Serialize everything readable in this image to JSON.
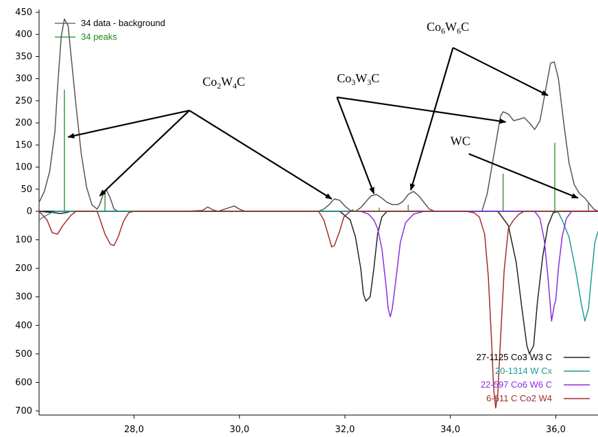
{
  "chart_data": {
    "type": "line",
    "title": "",
    "xlabel": "",
    "ylabel": "",
    "xlim": [
      26.2,
      36.8
    ],
    "ylim_upper": [
      0,
      450
    ],
    "ylim_lower": [
      0,
      700
    ],
    "x_ticks": [
      {
        "value": 28,
        "label": "28,0"
      },
      {
        "value": 30,
        "label": "30,0"
      },
      {
        "value": 32,
        "label": "32,0"
      },
      {
        "value": 34,
        "label": "34,0"
      },
      {
        "value": 36,
        "label": "36,0"
      }
    ],
    "y_ticks_upper": [
      {
        "value": 450,
        "label": "450"
      },
      {
        "value": 400,
        "label": "400"
      },
      {
        "value": 350,
        "label": "350"
      },
      {
        "value": 300,
        "label": "300"
      },
      {
        "value": 250,
        "label": "250"
      },
      {
        "value": 200,
        "label": "200"
      },
      {
        "value": 150,
        "label": "150"
      },
      {
        "value": 100,
        "label": "100"
      },
      {
        "value": 50,
        "label": "50"
      },
      {
        "value": 0,
        "label": "0"
      }
    ],
    "y_ticks_lower": [
      {
        "value": 100,
        "label": "100"
      },
      {
        "value": 200,
        "label": "200"
      },
      {
        "value": 300,
        "label": "300"
      },
      {
        "value": 400,
        "label": "400"
      },
      {
        "value": 500,
        "label": "500"
      },
      {
        "value": 600,
        "label": "600"
      },
      {
        "value": 700,
        "label": "700"
      }
    ],
    "colors": {
      "data": "#555555",
      "peaks": "#1a8a1a",
      "co3w3c": "#222222",
      "wc": "#1a9e8e",
      "co6w6c": "#8a2be2",
      "co2w4c": "#a52a2a",
      "arrow": "#000000"
    },
    "series": [
      {
        "key": "data",
        "name": "34 data - background",
        "points": [
          [
            26.2,
            20
          ],
          [
            26.3,
            45
          ],
          [
            26.4,
            90
          ],
          [
            26.5,
            180
          ],
          [
            26.55,
            280
          ],
          [
            26.62,
            395
          ],
          [
            26.68,
            435
          ],
          [
            26.75,
            420
          ],
          [
            26.8,
            360
          ],
          [
            26.9,
            240
          ],
          [
            27.0,
            130
          ],
          [
            27.1,
            55
          ],
          [
            27.2,
            15
          ],
          [
            27.3,
            5
          ],
          [
            27.35,
            15
          ],
          [
            27.42,
            40
          ],
          [
            27.48,
            48
          ],
          [
            27.55,
            30
          ],
          [
            27.62,
            5
          ],
          [
            27.7,
            0
          ],
          [
            28.5,
            0
          ],
          [
            29.0,
            0
          ],
          [
            29.3,
            2
          ],
          [
            29.4,
            10
          ],
          [
            29.5,
            3
          ],
          [
            29.6,
            0
          ],
          [
            29.8,
            8
          ],
          [
            29.9,
            12
          ],
          [
            30.0,
            5
          ],
          [
            30.1,
            0
          ],
          [
            31.5,
            0
          ],
          [
            31.6,
            5
          ],
          [
            31.7,
            15
          ],
          [
            31.8,
            28
          ],
          [
            31.9,
            25
          ],
          [
            32.0,
            12
          ],
          [
            32.1,
            2
          ],
          [
            32.2,
            0
          ],
          [
            32.3,
            8
          ],
          [
            32.4,
            22
          ],
          [
            32.5,
            35
          ],
          [
            32.6,
            38
          ],
          [
            32.7,
            30
          ],
          [
            32.8,
            20
          ],
          [
            32.9,
            15
          ],
          [
            33.0,
            15
          ],
          [
            33.1,
            22
          ],
          [
            33.2,
            38
          ],
          [
            33.3,
            45
          ],
          [
            33.4,
            35
          ],
          [
            33.5,
            20
          ],
          [
            33.6,
            5
          ],
          [
            33.7,
            0
          ],
          [
            34.6,
            0
          ],
          [
            34.7,
            40
          ],
          [
            34.8,
            110
          ],
          [
            34.9,
            180
          ],
          [
            34.95,
            215
          ],
          [
            35.0,
            225
          ],
          [
            35.1,
            220
          ],
          [
            35.2,
            205
          ],
          [
            35.3,
            208
          ],
          [
            35.4,
            212
          ],
          [
            35.5,
            200
          ],
          [
            35.6,
            185
          ],
          [
            35.7,
            205
          ],
          [
            35.8,
            270
          ],
          [
            35.9,
            335
          ],
          [
            35.97,
            338
          ],
          [
            36.05,
            300
          ],
          [
            36.15,
            200
          ],
          [
            36.25,
            110
          ],
          [
            36.35,
            60
          ],
          [
            36.45,
            40
          ],
          [
            36.55,
            30
          ],
          [
            36.65,
            15
          ],
          [
            36.72,
            5
          ],
          [
            36.8,
            0
          ]
        ]
      },
      {
        "key": "co3w3c",
        "name": "27-1125 Co3 W3 C",
        "points": [
          [
            26.2,
            0
          ],
          [
            26.5,
            -5
          ],
          [
            26.6,
            -8
          ],
          [
            26.7,
            -5
          ],
          [
            26.8,
            0
          ],
          [
            31.9,
            0
          ],
          [
            32.1,
            -30
          ],
          [
            32.2,
            -90
          ],
          [
            32.3,
            -200
          ],
          [
            32.35,
            -290
          ],
          [
            32.4,
            -315
          ],
          [
            32.48,
            -300
          ],
          [
            32.55,
            -200
          ],
          [
            32.62,
            -80
          ],
          [
            32.7,
            -20
          ],
          [
            32.8,
            0
          ],
          [
            34.9,
            0
          ],
          [
            35.1,
            -50
          ],
          [
            35.25,
            -180
          ],
          [
            35.35,
            -330
          ],
          [
            35.45,
            -470
          ],
          [
            35.5,
            -500
          ],
          [
            35.58,
            -470
          ],
          [
            35.65,
            -320
          ],
          [
            35.75,
            -160
          ],
          [
            35.85,
            -50
          ],
          [
            35.95,
            -5
          ],
          [
            36.05,
            0
          ],
          [
            36.8,
            0
          ]
        ]
      },
      {
        "key": "wc",
        "name": "20-1314 W Cx",
        "points": [
          [
            26.2,
            -30
          ],
          [
            26.3,
            -18
          ],
          [
            26.4,
            -8
          ],
          [
            26.5,
            0
          ],
          [
            36.0,
            0
          ],
          [
            36.05,
            -5
          ],
          [
            36.12,
            -30
          ],
          [
            36.25,
            -90
          ],
          [
            36.38,
            -210
          ],
          [
            36.48,
            -320
          ],
          [
            36.55,
            -385
          ],
          [
            36.62,
            -340
          ],
          [
            36.68,
            -220
          ],
          [
            36.74,
            -110
          ],
          [
            36.8,
            -70
          ]
        ]
      },
      {
        "key": "co6w6c",
        "name": "22-597 Co6 W6 C",
        "points": [
          [
            32.3,
            0
          ],
          [
            32.45,
            -10
          ],
          [
            32.55,
            -30
          ],
          [
            32.62,
            -60
          ],
          [
            32.7,
            -130
          ],
          [
            32.78,
            -260
          ],
          [
            32.82,
            -340
          ],
          [
            32.86,
            -370
          ],
          [
            32.9,
            -340
          ],
          [
            32.96,
            -250
          ],
          [
            33.05,
            -110
          ],
          [
            33.15,
            -40
          ],
          [
            33.3,
            -10
          ],
          [
            33.5,
            0
          ],
          [
            35.6,
            0
          ],
          [
            35.7,
            -25
          ],
          [
            35.78,
            -100
          ],
          [
            35.85,
            -230
          ],
          [
            35.92,
            -385
          ],
          [
            35.97,
            -330
          ],
          [
            36.0,
            -310
          ],
          [
            36.05,
            -200
          ],
          [
            36.12,
            -90
          ],
          [
            36.2,
            -25
          ],
          [
            36.3,
            0
          ],
          [
            36.8,
            0
          ]
        ]
      },
      {
        "key": "co2w4c",
        "name": "6-611 C Co2 W4",
        "points": [
          [
            26.2,
            0
          ],
          [
            26.35,
            -30
          ],
          [
            26.45,
            -75
          ],
          [
            26.55,
            -80
          ],
          [
            26.65,
            -50
          ],
          [
            26.8,
            -15
          ],
          [
            26.9,
            0
          ],
          [
            27.3,
            0
          ],
          [
            27.35,
            -25
          ],
          [
            27.45,
            -80
          ],
          [
            27.55,
            -115
          ],
          [
            27.62,
            -120
          ],
          [
            27.7,
            -90
          ],
          [
            27.8,
            -35
          ],
          [
            27.9,
            -5
          ],
          [
            28.0,
            0
          ],
          [
            31.5,
            0
          ],
          [
            31.6,
            -30
          ],
          [
            31.68,
            -80
          ],
          [
            31.75,
            -125
          ],
          [
            31.8,
            -120
          ],
          [
            31.9,
            -70
          ],
          [
            31.98,
            -20
          ],
          [
            32.1,
            0
          ],
          [
            34.3,
            0
          ],
          [
            34.45,
            -5
          ],
          [
            34.55,
            -20
          ],
          [
            34.65,
            -80
          ],
          [
            34.72,
            -230
          ],
          [
            34.78,
            -450
          ],
          [
            34.82,
            -620
          ],
          [
            34.86,
            -690
          ],
          [
            34.9,
            -640
          ],
          [
            34.95,
            -450
          ],
          [
            35.02,
            -210
          ],
          [
            35.1,
            -60
          ],
          [
            35.2,
            -30
          ],
          [
            35.3,
            -10
          ],
          [
            35.4,
            0
          ],
          [
            36.8,
            0
          ]
        ]
      }
    ],
    "peak_bars": {
      "name": "34 peaks",
      "x": [
        26.68,
        27.45,
        32.15,
        32.65,
        33.2,
        35.0,
        35.98,
        36.62
      ],
      "y": [
        275,
        40,
        5,
        8,
        15,
        85,
        155,
        20
      ]
    },
    "legend_top": [
      {
        "label": "34 data - background",
        "color_key": "data"
      },
      {
        "label": "34 peaks",
        "color_key": "peaks"
      }
    ],
    "legend_bottom": [
      {
        "label": "27-1125 Co3 W3 C",
        "color_key": "co3w3c"
      },
      {
        "label": "20-1314 W Cx",
        "color_key": "wc"
      },
      {
        "label": "22-597 Co6 W6 C",
        "color_key": "co6w6c"
      },
      {
        "label": "6-611 C Co2 W4",
        "color_key": "co2w4c"
      }
    ],
    "annotations": [
      {
        "label": "Co2W4C",
        "base": "Co",
        "parts": [
          [
            "Co",
            ""
          ],
          [
            "2",
            "sub"
          ],
          [
            "W",
            ""
          ],
          [
            "4",
            "sub"
          ],
          [
            "C",
            ""
          ]
        ],
        "at": [
          29.3,
          284
        ],
        "from": [
          29.05,
          228
        ],
        "to": [
          [
            26.75,
            168
          ],
          [
            27.35,
            35
          ],
          [
            31.75,
            28
          ]
        ]
      },
      {
        "label": "Co3W3C",
        "parts": [
          [
            "Co",
            ""
          ],
          [
            "3",
            "sub"
          ],
          [
            "W",
            ""
          ],
          [
            "3",
            "sub"
          ],
          [
            "C",
            ""
          ]
        ],
        "at": [
          31.85,
          292
        ],
        "from": [
          31.85,
          258
        ],
        "to": [
          [
            32.55,
            40
          ],
          [
            35.05,
            202
          ]
        ]
      },
      {
        "label": "Co6W6C",
        "parts": [
          [
            "Co",
            ""
          ],
          [
            "6",
            "sub"
          ],
          [
            "W",
            ""
          ],
          [
            "6",
            "sub"
          ],
          [
            "C",
            ""
          ]
        ],
        "at": [
          33.55,
          408
        ],
        "from": [
          34.05,
          370
        ],
        "to": [
          [
            33.25,
            48
          ],
          [
            35.85,
            262
          ]
        ]
      },
      {
        "label": "WC",
        "parts": [
          [
            "WC",
            ""
          ]
        ],
        "at": [
          34.0,
          150
        ],
        "from": [
          34.35,
          130
        ],
        "to": [
          [
            36.42,
            30
          ]
        ]
      }
    ]
  }
}
